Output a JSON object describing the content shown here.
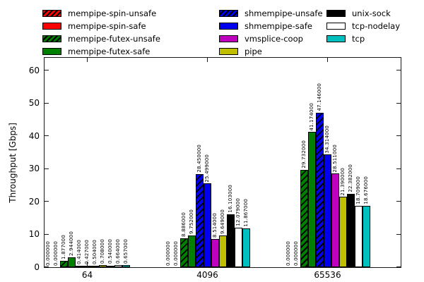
{
  "chart_data": {
    "type": "bar",
    "title": "",
    "xlabel": "",
    "ylabel": "Throughput [Gbps]",
    "ylim": [
      0,
      63.8
    ],
    "yticks": [
      0,
      10,
      20,
      30,
      40,
      50,
      60
    ],
    "grid": false,
    "legend_position": "top",
    "legend_columns": [
      [
        0,
        1,
        2,
        3
      ],
      [
        4,
        5,
        6,
        7
      ],
      [
        8,
        9,
        10
      ]
    ],
    "bar_value_label_decimals": 6,
    "categories": [
      "64",
      "4096",
      "65536"
    ],
    "series": [
      {
        "name": "mempipe-spin-unsafe",
        "color": "#ff0000",
        "hatch": true,
        "values": [
          0.0,
          0.0,
          0.0
        ]
      },
      {
        "name": "mempipe-spin-safe",
        "color": "#ff0000",
        "hatch": false,
        "values": [
          0.0,
          0.0,
          0.0
        ]
      },
      {
        "name": "mempipe-futex-unsafe",
        "color": "#008000",
        "hatch": true,
        "values": [
          1.877,
          8.886,
          29.732
        ]
      },
      {
        "name": "mempipe-futex-safe",
        "color": "#008000",
        "hatch": false,
        "values": [
          2.944,
          9.752,
          41.174
        ]
      },
      {
        "name": "shmempipe-unsafe",
        "color": "#0000ee",
        "hatch": true,
        "values": [
          0.414,
          28.45,
          47.146
        ]
      },
      {
        "name": "shmempipe-safe",
        "color": "#0000ee",
        "hatch": false,
        "values": [
          0.427,
          25.499,
          34.314
        ]
      },
      {
        "name": "vmsplice-coop",
        "color": "#bf00bf",
        "hatch": false,
        "values": [
          0.504,
          8.514,
          28.511
        ]
      },
      {
        "name": "pipe",
        "color": "#bfbf00",
        "hatch": false,
        "values": [
          0.708,
          9.649,
          21.39
        ]
      },
      {
        "name": "unix-sock",
        "color": "#000000",
        "hatch": false,
        "values": [
          0.54,
          16.103,
          22.382
        ]
      },
      {
        "name": "tcp-nodelay",
        "color": "#ffffff",
        "hatch": false,
        "values": [
          0.664,
          12.079,
          18.709
        ]
      },
      {
        "name": "tcp",
        "color": "#00bfbf",
        "hatch": false,
        "values": [
          0.657,
          11.867,
          18.676
        ]
      }
    ]
  }
}
